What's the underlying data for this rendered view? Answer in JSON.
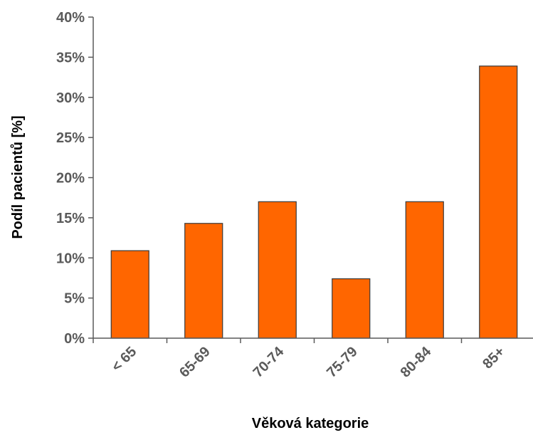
{
  "chart_data": {
    "type": "bar",
    "title": "",
    "xlabel": "Věková kategorie",
    "ylabel": "Podíl pacientů [%]",
    "categories": [
      "< 65",
      "65-69",
      "70-74",
      "75-79",
      "80-84",
      "85+"
    ],
    "values": [
      10.9,
      14.3,
      17.0,
      7.4,
      17.0,
      33.9
    ],
    "ylim": [
      0,
      40
    ],
    "yticks": [
      0,
      5,
      10,
      15,
      20,
      25,
      30,
      35,
      40
    ],
    "ytick_labels": [
      "0%",
      "5%",
      "10%",
      "15%",
      "20%",
      "25%",
      "30%",
      "35%",
      "40%"
    ],
    "grid": false,
    "legend": "none",
    "colors": {
      "bar_fill": "#ff6600",
      "bar_stroke": "#3a3a3a",
      "axis": "#5a5a5a",
      "tick_text": "#5a5a5a",
      "title_text": "#000000"
    }
  }
}
